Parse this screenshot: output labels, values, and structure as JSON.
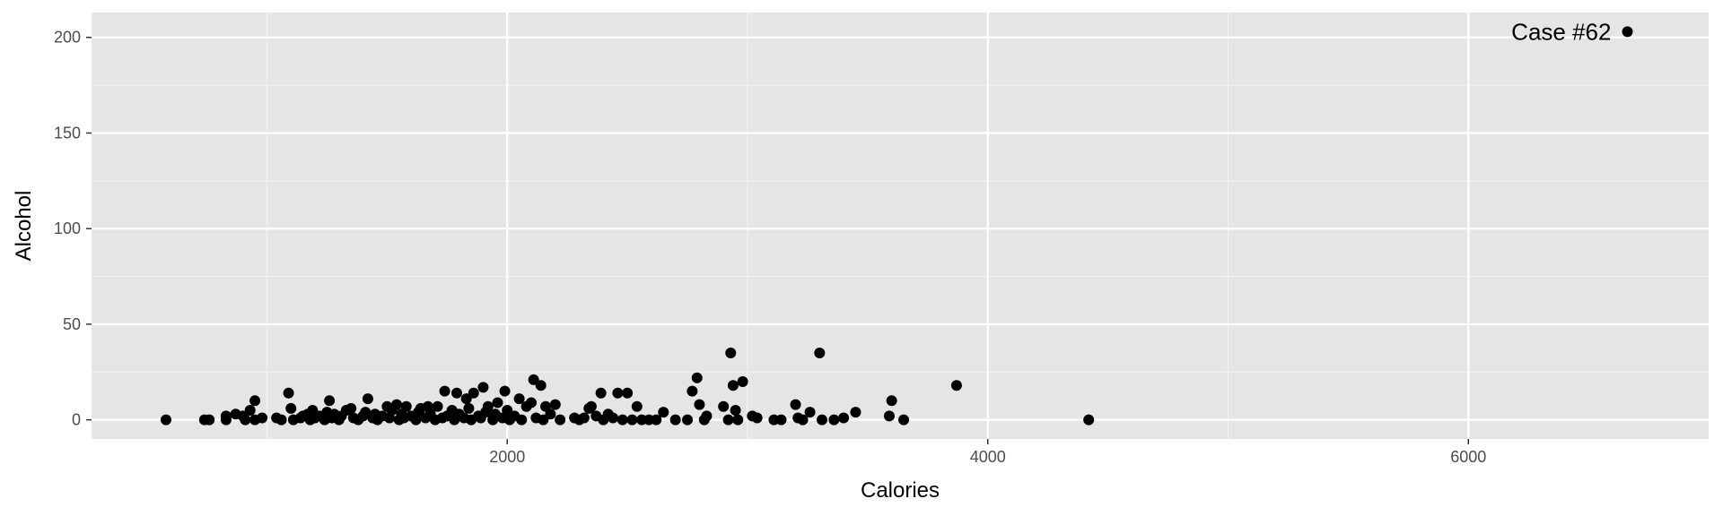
{
  "chart_data": {
    "type": "scatter",
    "title": "",
    "xlabel": "Calories",
    "ylabel": "Alcohol",
    "xlim": [
      270,
      7000
    ],
    "ylim": [
      -10,
      213
    ],
    "x_ticks": [
      2000,
      4000,
      6000
    ],
    "y_ticks": [
      0,
      50,
      100,
      150,
      200
    ],
    "grid": true,
    "background": "#e5e5e5",
    "point_color": "#000000",
    "annotations": [
      {
        "text": "Case #62",
        "x": 6662,
        "y": 203
      }
    ],
    "points": [
      [
        580,
        0
      ],
      [
        740,
        0
      ],
      [
        760,
        0
      ],
      [
        830,
        0
      ],
      [
        830,
        2
      ],
      [
        870,
        3
      ],
      [
        900,
        2
      ],
      [
        910,
        0
      ],
      [
        930,
        5
      ],
      [
        950,
        0
      ],
      [
        950,
        10
      ],
      [
        980,
        1
      ],
      [
        1040,
        1
      ],
      [
        1060,
        0
      ],
      [
        1090,
        14
      ],
      [
        1100,
        6
      ],
      [
        1110,
        0
      ],
      [
        1140,
        1
      ],
      [
        1150,
        2
      ],
      [
        1170,
        3
      ],
      [
        1180,
        0
      ],
      [
        1190,
        5
      ],
      [
        1200,
        1
      ],
      [
        1220,
        2
      ],
      [
        1240,
        0
      ],
      [
        1250,
        4
      ],
      [
        1260,
        10
      ],
      [
        1270,
        1
      ],
      [
        1280,
        3
      ],
      [
        1300,
        0
      ],
      [
        1310,
        2
      ],
      [
        1330,
        5
      ],
      [
        1350,
        6
      ],
      [
        1360,
        1
      ],
      [
        1380,
        0
      ],
      [
        1400,
        2
      ],
      [
        1410,
        4
      ],
      [
        1420,
        11
      ],
      [
        1440,
        1
      ],
      [
        1450,
        3
      ],
      [
        1460,
        0
      ],
      [
        1480,
        2
      ],
      [
        1500,
        7
      ],
      [
        1510,
        1
      ],
      [
        1520,
        5
      ],
      [
        1540,
        8
      ],
      [
        1550,
        0
      ],
      [
        1560,
        3
      ],
      [
        1570,
        1
      ],
      [
        1580,
        7
      ],
      [
        1600,
        2
      ],
      [
        1620,
        0
      ],
      [
        1630,
        4
      ],
      [
        1640,
        6
      ],
      [
        1660,
        1
      ],
      [
        1670,
        7
      ],
      [
        1680,
        3
      ],
      [
        1700,
        0
      ],
      [
        1710,
        7
      ],
      [
        1730,
        1
      ],
      [
        1740,
        15
      ],
      [
        1750,
        2
      ],
      [
        1770,
        5
      ],
      [
        1780,
        0
      ],
      [
        1790,
        14
      ],
      [
        1800,
        3
      ],
      [
        1820,
        1
      ],
      [
        1830,
        11
      ],
      [
        1840,
        6
      ],
      [
        1850,
        0
      ],
      [
        1860,
        14
      ],
      [
        1880,
        2
      ],
      [
        1890,
        1
      ],
      [
        1900,
        17
      ],
      [
        1910,
        4
      ],
      [
        1920,
        7
      ],
      [
        1940,
        0
      ],
      [
        1950,
        3
      ],
      [
        1960,
        9
      ],
      [
        1980,
        1
      ],
      [
        1990,
        15
      ],
      [
        2000,
        5
      ],
      [
        2010,
        0
      ],
      [
        2030,
        2
      ],
      [
        2050,
        11
      ],
      [
        2060,
        0
      ],
      [
        2080,
        7
      ],
      [
        2100,
        9
      ],
      [
        2110,
        21
      ],
      [
        2120,
        1
      ],
      [
        2140,
        18
      ],
      [
        2150,
        0
      ],
      [
        2160,
        7
      ],
      [
        2180,
        3
      ],
      [
        2200,
        8
      ],
      [
        2220,
        0
      ],
      [
        2280,
        1
      ],
      [
        2300,
        0
      ],
      [
        2320,
        1
      ],
      [
        2340,
        6
      ],
      [
        2350,
        7
      ],
      [
        2370,
        2
      ],
      [
        2390,
        14
      ],
      [
        2400,
        0
      ],
      [
        2420,
        3
      ],
      [
        2440,
        1
      ],
      [
        2460,
        14
      ],
      [
        2480,
        0
      ],
      [
        2500,
        14
      ],
      [
        2520,
        0
      ],
      [
        2540,
        7
      ],
      [
        2560,
        0
      ],
      [
        2590,
        0
      ],
      [
        2620,
        0
      ],
      [
        2650,
        4
      ],
      [
        2700,
        0
      ],
      [
        2750,
        0
      ],
      [
        2770,
        15
      ],
      [
        2790,
        22
      ],
      [
        2800,
        8
      ],
      [
        2820,
        0
      ],
      [
        2830,
        2
      ],
      [
        2900,
        7
      ],
      [
        2920,
        0
      ],
      [
        2930,
        35
      ],
      [
        2940,
        18
      ],
      [
        2950,
        5
      ],
      [
        2960,
        0
      ],
      [
        2980,
        20
      ],
      [
        3020,
        2
      ],
      [
        3040,
        1
      ],
      [
        3110,
        0
      ],
      [
        3140,
        0
      ],
      [
        3200,
        8
      ],
      [
        3210,
        1
      ],
      [
        3230,
        0
      ],
      [
        3260,
        4
      ],
      [
        3300,
        35
      ],
      [
        3310,
        0
      ],
      [
        3360,
        0
      ],
      [
        3400,
        1
      ],
      [
        3450,
        4
      ],
      [
        3590,
        2
      ],
      [
        3600,
        10
      ],
      [
        3650,
        0
      ],
      [
        3870,
        18
      ],
      [
        4420,
        0
      ],
      [
        6662,
        203
      ]
    ]
  }
}
